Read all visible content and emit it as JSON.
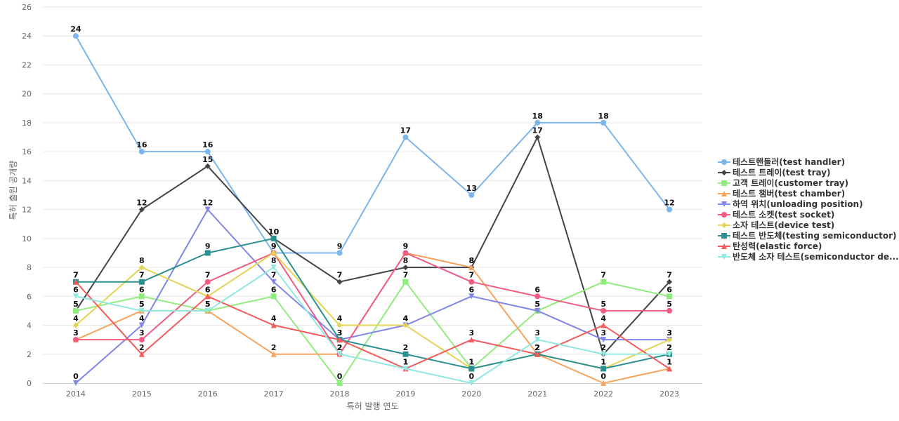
{
  "chart_data": {
    "type": "line",
    "xlabel": "특허 발행 연도",
    "ylabel": "특허 출원 공개량",
    "x": [
      "2014",
      "2015",
      "2016",
      "2017",
      "2018",
      "2019",
      "2020",
      "2021",
      "2022",
      "2023"
    ],
    "ylim": [
      0,
      26
    ],
    "yticks": [
      0,
      2,
      4,
      6,
      8,
      10,
      12,
      14,
      16,
      18,
      20,
      22,
      24,
      26
    ],
    "grid": true,
    "legend_position": "right",
    "series": [
      {
        "name": "테스트핸들러(test handler)",
        "color": "#7cb5ec",
        "marker": "circle",
        "values": [
          24,
          16,
          16,
          9,
          9,
          17,
          13,
          18,
          18,
          12
        ]
      },
      {
        "name": "테스트 트레이(test tray)",
        "color": "#434348",
        "marker": "diamond",
        "values": [
          5,
          12,
          15,
          10,
          7,
          8,
          8,
          17,
          2,
          7
        ]
      },
      {
        "name": "고객 트레이(customer tray)",
        "color": "#90ed7d",
        "marker": "square",
        "values": [
          5,
          6,
          5,
          6,
          0,
          7,
          1,
          5,
          7,
          6
        ]
      },
      {
        "name": "테스트 챔버(test chamber)",
        "color": "#f7a35c",
        "marker": "triangle",
        "values": [
          3,
          5,
          5,
          2,
          2,
          9,
          8,
          2,
          0,
          1
        ]
      },
      {
        "name": "하역 위치(unloading position)",
        "color": "#8085e9",
        "marker": "triangle-down",
        "values": [
          0,
          4,
          12,
          7,
          3,
          4,
          6,
          5,
          3,
          3
        ]
      },
      {
        "name": "테스트 소켓(test socket)",
        "color": "#f15c80",
        "marker": "circle",
        "values": [
          3,
          3,
          7,
          9,
          2,
          9,
          7,
          6,
          5,
          5
        ]
      },
      {
        "name": "소자 테스트(device test)",
        "color": "#e4d354",
        "marker": "diamond",
        "values": [
          4,
          8,
          6,
          9,
          4,
          4,
          1,
          2,
          1,
          3
        ]
      },
      {
        "name": "테스트 반도체(testing semiconductor)",
        "color": "#2b908f",
        "marker": "square",
        "values": [
          7,
          7,
          9,
          10,
          3,
          2,
          1,
          2,
          1,
          2
        ]
      },
      {
        "name": "탄성력(elastic force)",
        "color": "#f45b5b",
        "marker": "triangle",
        "values": [
          7,
          2,
          6,
          4,
          3,
          1,
          3,
          2,
          4,
          1
        ]
      },
      {
        "name": "반도체 소자 테스트(semiconductor de...",
        "color": "#91e8e1",
        "marker": "triangle-down",
        "values": [
          6,
          5,
          5,
          8,
          2,
          1,
          0,
          3,
          2,
          2
        ]
      }
    ]
  }
}
